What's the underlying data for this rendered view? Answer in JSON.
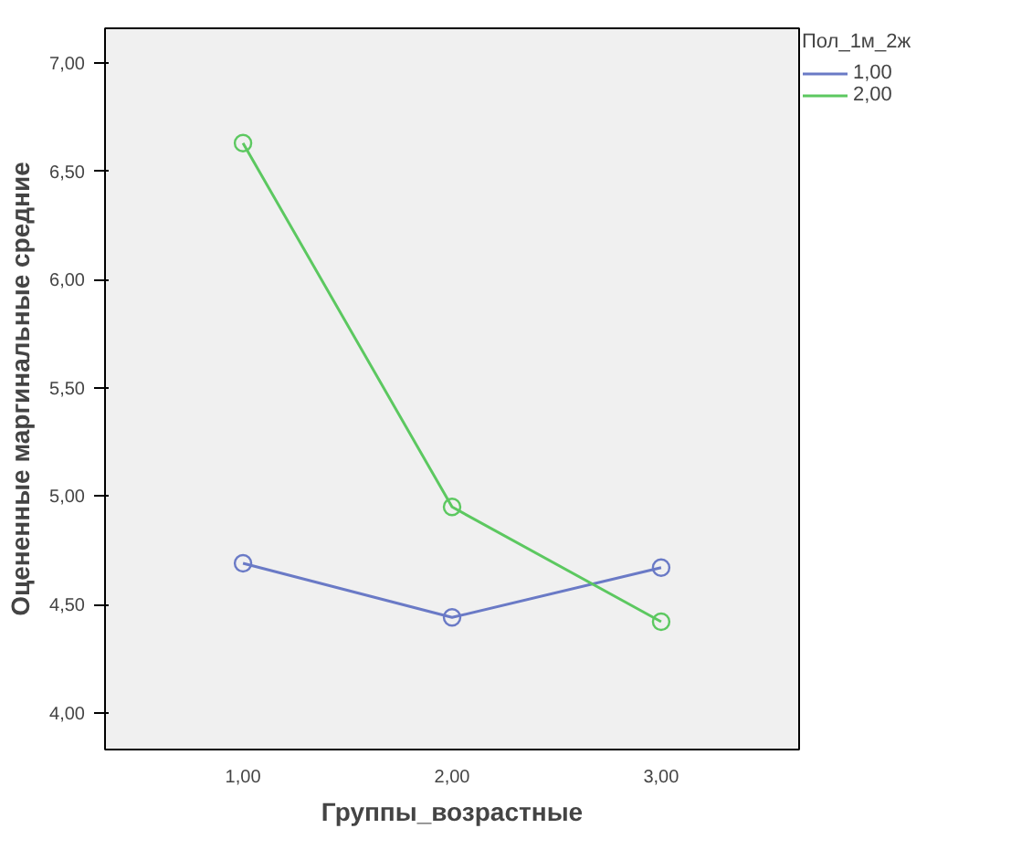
{
  "chart_data": {
    "type": "line",
    "xlabel": "Группы_возрастные",
    "ylabel": "Оцененные маргинальные средние",
    "legend_title": "Пол_1м_2ж",
    "x": [
      1,
      2,
      3
    ],
    "series": [
      {
        "name": "1,00",
        "color": "#6a7ac6",
        "values": [
          4.69,
          4.44,
          4.67
        ]
      },
      {
        "name": "2,00",
        "color": "#5cc860",
        "values": [
          6.63,
          4.95,
          4.42
        ]
      }
    ],
    "xlim": [
      0.34,
      3.66
    ],
    "ylim": [
      3.83,
      7.16
    ],
    "xticks": [
      {
        "value": 1,
        "label": "1,00"
      },
      {
        "value": 2,
        "label": "2,00"
      },
      {
        "value": 3,
        "label": "3,00"
      }
    ],
    "yticks": [
      {
        "value": 4,
        "label": "4,00"
      },
      {
        "value": 4.5,
        "label": "4,50"
      },
      {
        "value": 5,
        "label": "5,00"
      },
      {
        "value": 5.5,
        "label": "5,50"
      },
      {
        "value": 6,
        "label": "6,00"
      },
      {
        "value": 6.5,
        "label": "6,50"
      },
      {
        "value": 7,
        "label": "7,00"
      }
    ],
    "grid": false,
    "legend": "top right",
    "marker": "circle",
    "line_style": "solid"
  }
}
